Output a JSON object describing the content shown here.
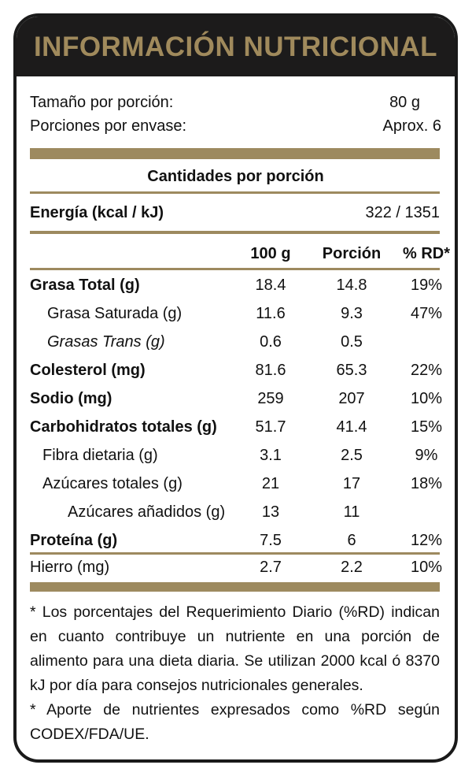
{
  "title": "INFORMACIÓN NUTRICIONAL",
  "serving": {
    "size_label": "Tamaño por porción:",
    "size_value": "80 g",
    "count_label": "Porciones por envase:",
    "count_value": "Aprox. 6"
  },
  "amounts_header": "Cantidades por porción",
  "energy": {
    "label": "Energía (kcal / kJ)",
    "value": "322 / 1351"
  },
  "columns": {
    "per100": "100 g",
    "portion": "Porción",
    "rd": "% RD*"
  },
  "rows": [
    {
      "name": "Grasa Total (g)",
      "per100": "18.4",
      "portion": "14.8",
      "rd": "19%"
    },
    {
      "name": "Grasa Saturada (g)",
      "per100": "11.6",
      "portion": "9.3",
      "rd": "47%"
    },
    {
      "name": "Grasas Trans (g)",
      "per100": "0.6",
      "portion": "0.5",
      "rd": ""
    },
    {
      "name": "Colesterol (mg)",
      "per100": "81.6",
      "portion": "65.3",
      "rd": "22%"
    },
    {
      "name": "Sodio (mg)",
      "per100": "259",
      "portion": "207",
      "rd": "10%"
    },
    {
      "name": "Carbohidratos totales (g)",
      "per100": "51.7",
      "portion": "41.4",
      "rd": "15%"
    },
    {
      "name": "Fibra dietaria (g)",
      "per100": "3.1",
      "portion": "2.5",
      "rd": "9%"
    },
    {
      "name": "Azúcares totales (g)",
      "per100": "21",
      "portion": "17",
      "rd": "18%"
    },
    {
      "name": "Azúcares añadidos (g)",
      "per100": "13",
      "portion": "11",
      "rd": ""
    },
    {
      "name": "Proteína (g)",
      "per100": "7.5",
      "portion": "6",
      "rd": "12%"
    },
    {
      "name": "Hierro (mg)",
      "per100": "2.7",
      "portion": "2.2",
      "rd": "10%"
    }
  ],
  "footnotes": [
    "* Los porcentajes del Requerimiento Diario (%RD) indican en cuanto contribuye un nutriente en una porción de alimento para una dieta diaria. Se utilizan 2000 kcal ó 8370 kJ por día para consejos nutricionales generales.",
    "* Aporte de nutrientes expresados como %RD según CODEX/FDA/UE."
  ]
}
